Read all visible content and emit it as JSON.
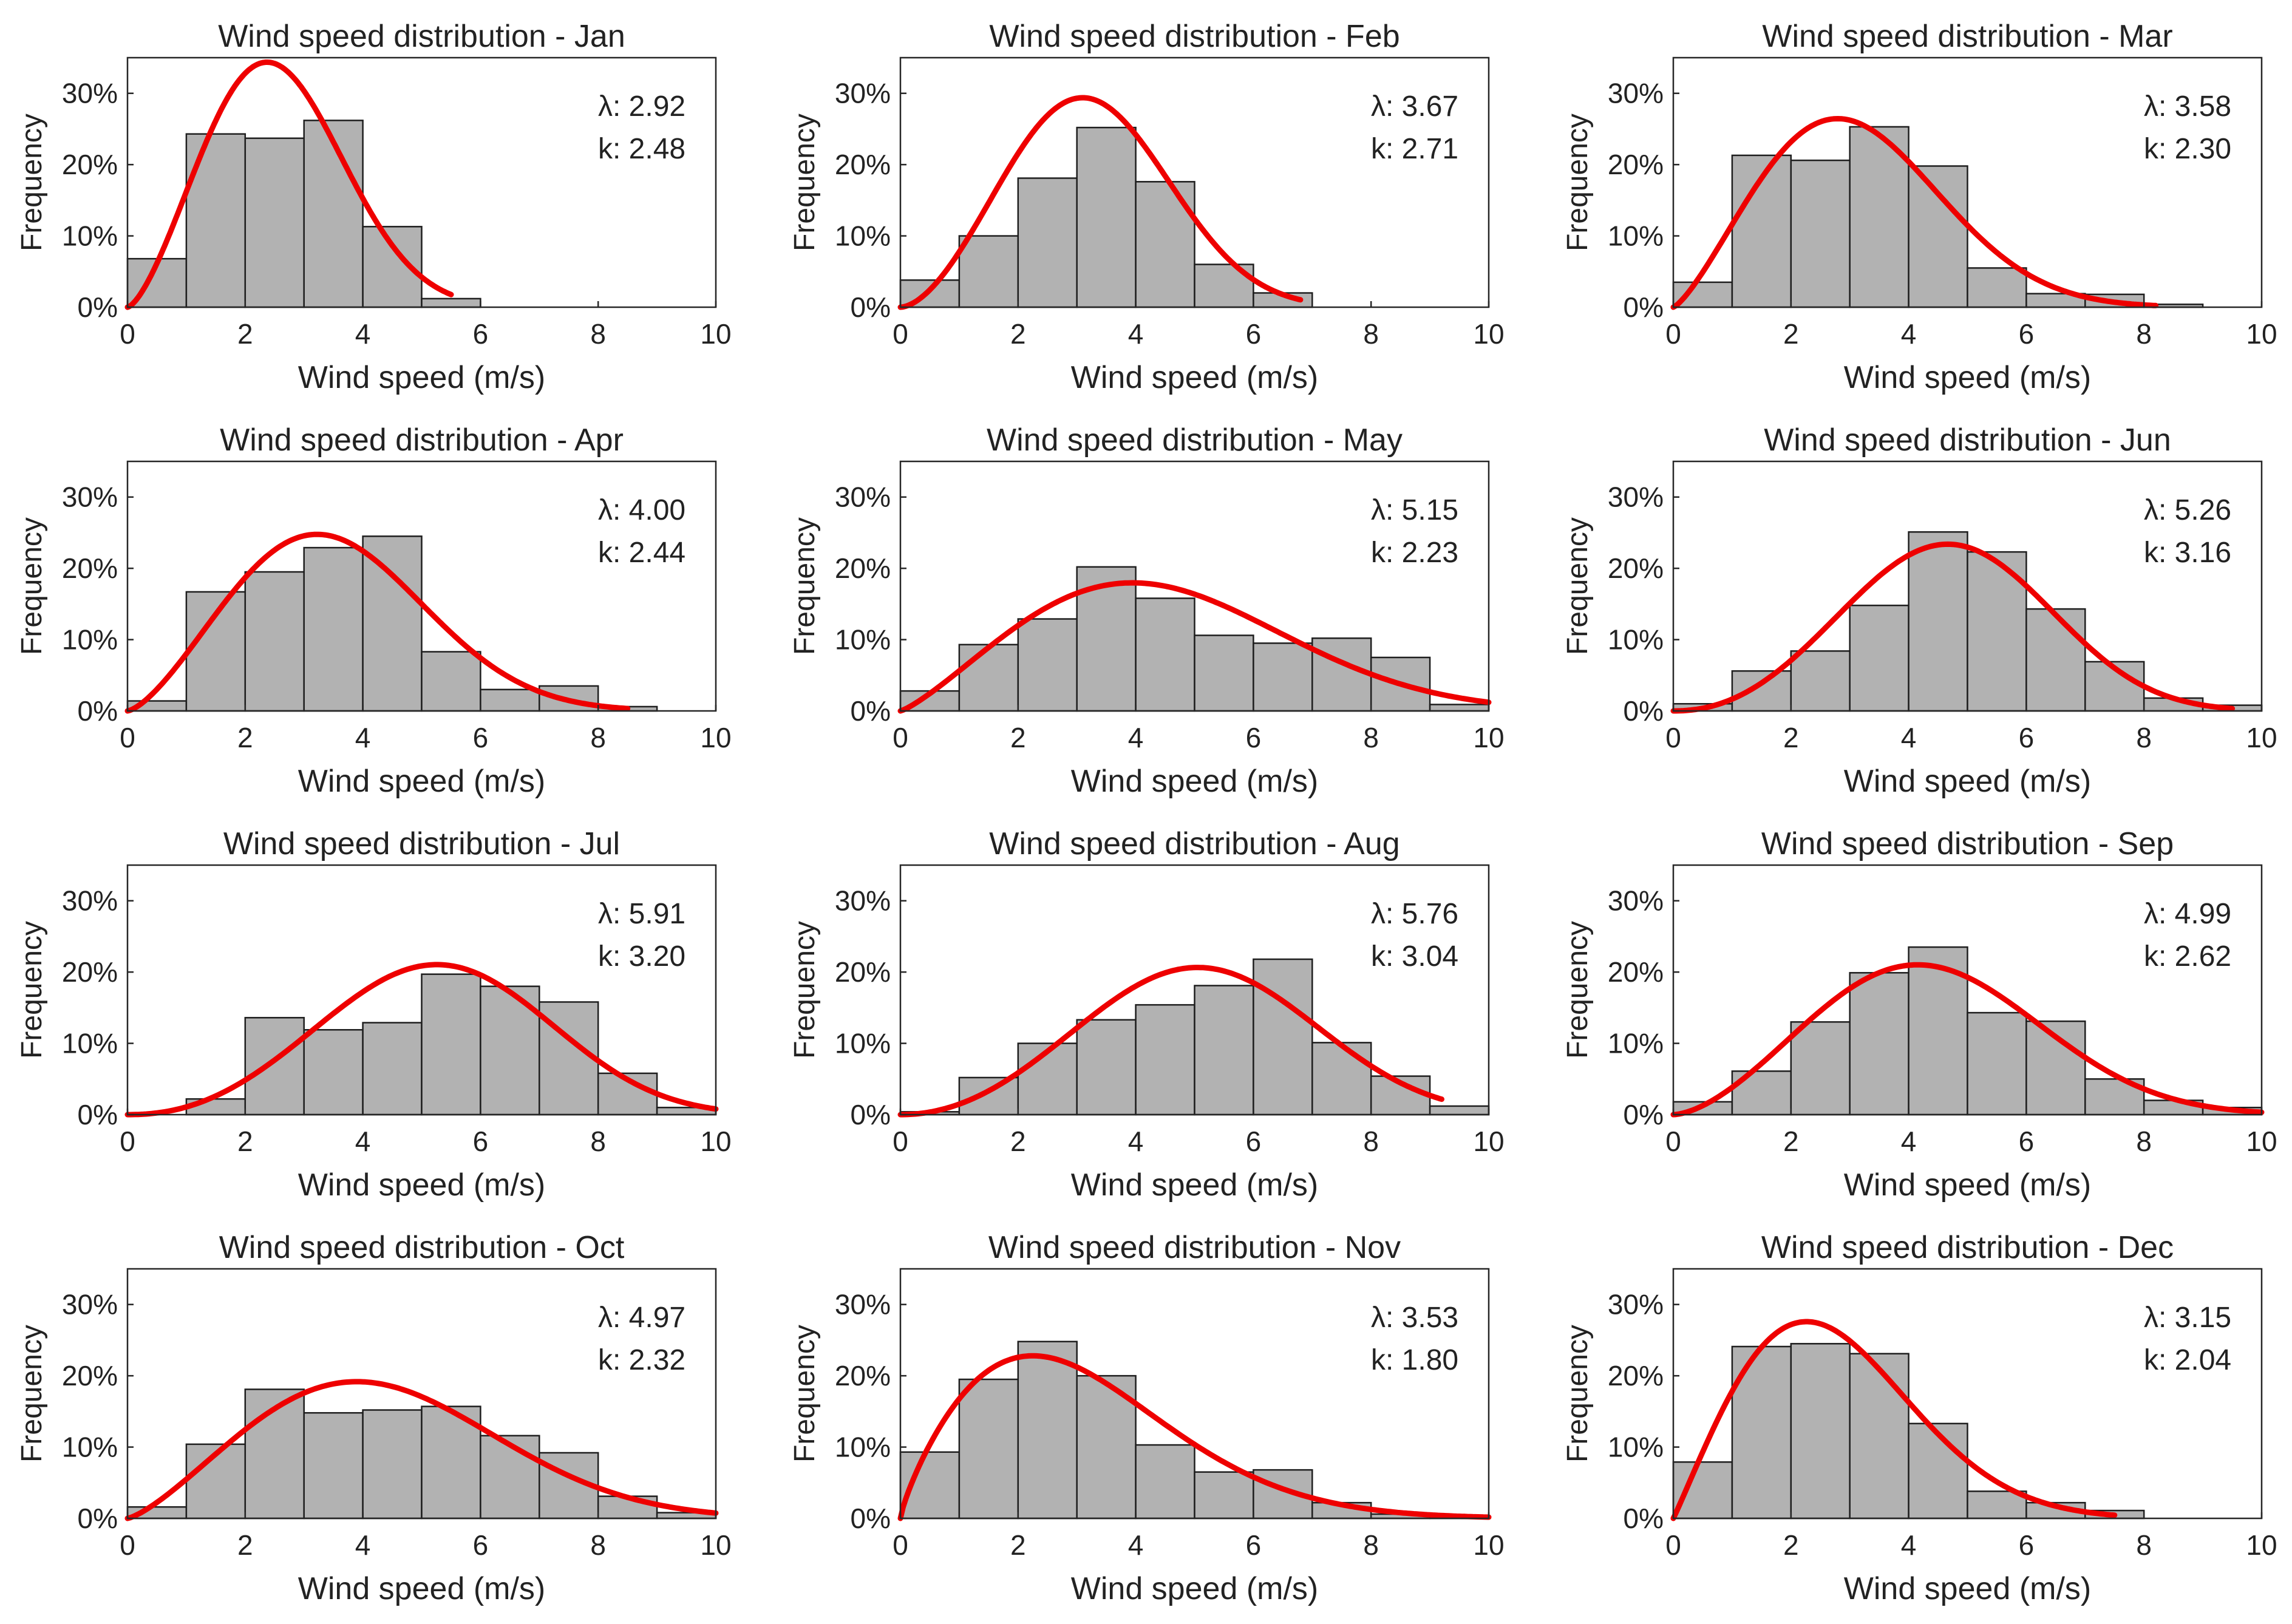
{
  "figure": {
    "colors": {
      "bar_fill": "#b2b2b2",
      "bar_edge": "#1e1e1e",
      "fit_line": "#ee0000",
      "text": "#222222"
    }
  },
  "chart_data": [
    {
      "type": "bar",
      "month": "Jan",
      "title": "Wind speed distribution - Jan",
      "xlabel": "Wind speed (m/s)",
      "ylabel": "Frequency",
      "xlim": [
        0,
        10
      ],
      "ylim": [
        0,
        35
      ],
      "x_ticks": [
        "0",
        "2",
        "4",
        "6",
        "8",
        "10"
      ],
      "y_ticks": [
        "0%",
        "10%",
        "20%",
        "30%"
      ],
      "bin_width": 1,
      "values": [
        6.8,
        24.3,
        23.7,
        26.2,
        11.3,
        1.2,
        0,
        0,
        0,
        0
      ],
      "weibull": {
        "lambda": 2.92,
        "k": 2.48,
        "lambda_label": "λ: 2.92",
        "k_label": "k: 2.48",
        "x_end": 5.5
      }
    },
    {
      "type": "bar",
      "month": "Feb",
      "title": "Wind speed distribution - Feb",
      "xlabel": "Wind speed (m/s)",
      "ylabel": "Frequency",
      "xlim": [
        0,
        10
      ],
      "ylim": [
        0,
        35
      ],
      "x_ticks": [
        "0",
        "2",
        "4",
        "6",
        "8",
        "10"
      ],
      "y_ticks": [
        "0%",
        "10%",
        "20%",
        "30%"
      ],
      "bin_width": 1,
      "values": [
        3.8,
        10.0,
        18.1,
        25.2,
        17.6,
        6.0,
        2.0,
        0,
        0,
        0
      ],
      "weibull": {
        "lambda": 3.67,
        "k": 2.71,
        "lambda_label": "λ: 3.67",
        "k_label": "k: 2.71",
        "x_end": 6.8
      }
    },
    {
      "type": "bar",
      "month": "Mar",
      "title": "Wind speed distribution - Mar",
      "xlabel": "Wind speed (m/s)",
      "ylabel": "Frequency",
      "xlim": [
        0,
        10
      ],
      "ylim": [
        0,
        35
      ],
      "x_ticks": [
        "0",
        "2",
        "4",
        "6",
        "8",
        "10"
      ],
      "y_ticks": [
        "0%",
        "10%",
        "20%",
        "30%"
      ],
      "bin_width": 1,
      "values": [
        3.5,
        21.3,
        20.6,
        25.3,
        19.8,
        5.5,
        1.9,
        1.8,
        0.4,
        0
      ],
      "weibull": {
        "lambda": 3.58,
        "k": 2.3,
        "lambda_label": "λ: 3.58",
        "k_label": "k: 2.30",
        "x_end": 8.2
      }
    },
    {
      "type": "bar",
      "month": "Apr",
      "title": "Wind speed distribution - Apr",
      "xlabel": "Wind speed (m/s)",
      "ylabel": "Frequency",
      "xlim": [
        0,
        10
      ],
      "ylim": [
        0,
        35
      ],
      "x_ticks": [
        "0",
        "2",
        "4",
        "6",
        "8",
        "10"
      ],
      "y_ticks": [
        "0%",
        "10%",
        "20%",
        "30%"
      ],
      "bin_width": 1,
      "values": [
        1.4,
        16.7,
        19.5,
        22.9,
        24.5,
        8.3,
        3.0,
        3.5,
        0.6,
        0
      ],
      "weibull": {
        "lambda": 4.0,
        "k": 2.44,
        "lambda_label": "λ: 4.00",
        "k_label": "k: 2.44",
        "x_end": 8.5
      }
    },
    {
      "type": "bar",
      "month": "May",
      "title": "Wind speed distribution - May",
      "xlabel": "Wind speed (m/s)",
      "ylabel": "Frequency",
      "xlim": [
        0,
        10
      ],
      "ylim": [
        0,
        35
      ],
      "x_ticks": [
        "0",
        "2",
        "4",
        "6",
        "8",
        "10"
      ],
      "y_ticks": [
        "0%",
        "10%",
        "20%",
        "30%"
      ],
      "bin_width": 1,
      "values": [
        2.8,
        9.3,
        12.9,
        20.2,
        15.8,
        10.6,
        9.5,
        10.2,
        7.5,
        0.9
      ],
      "weibull": {
        "lambda": 5.15,
        "k": 2.23,
        "lambda_label": "λ: 5.15",
        "k_label": "k: 2.23",
        "x_end": 10
      }
    },
    {
      "type": "bar",
      "month": "Jun",
      "title": "Wind speed distribution - Jun",
      "xlabel": "Wind speed (m/s)",
      "ylabel": "Frequency",
      "xlim": [
        0,
        10
      ],
      "ylim": [
        0,
        35
      ],
      "x_ticks": [
        "0",
        "2",
        "4",
        "6",
        "8",
        "10"
      ],
      "y_ticks": [
        "0%",
        "10%",
        "20%",
        "30%"
      ],
      "bin_width": 1,
      "values": [
        1.0,
        5.6,
        8.4,
        14.8,
        25.1,
        22.3,
        14.3,
        6.9,
        1.8,
        0.8
      ],
      "weibull": {
        "lambda": 5.26,
        "k": 3.16,
        "lambda_label": "λ: 5.26",
        "k_label": "k: 3.16",
        "x_end": 9.5
      }
    },
    {
      "type": "bar",
      "month": "Jul",
      "title": "Wind speed distribution - Jul",
      "xlabel": "Wind speed (m/s)",
      "ylabel": "Frequency",
      "xlim": [
        0,
        10
      ],
      "ylim": [
        0,
        35
      ],
      "x_ticks": [
        "0",
        "2",
        "4",
        "6",
        "8",
        "10"
      ],
      "y_ticks": [
        "0%",
        "10%",
        "20%",
        "30%"
      ],
      "bin_width": 1,
      "values": [
        0,
        2.2,
        13.6,
        11.9,
        12.9,
        19.7,
        18.0,
        15.8,
        5.8,
        1.0
      ],
      "weibull": {
        "lambda": 5.91,
        "k": 3.2,
        "lambda_label": "λ: 5.91",
        "k_label": "k: 3.20",
        "x_end": 10
      }
    },
    {
      "type": "bar",
      "month": "Aug",
      "title": "Wind speed distribution - Aug",
      "xlabel": "Wind speed (m/s)",
      "ylabel": "Frequency",
      "xlim": [
        0,
        10
      ],
      "ylim": [
        0,
        35
      ],
      "x_ticks": [
        "0",
        "2",
        "4",
        "6",
        "8",
        "10"
      ],
      "y_ticks": [
        "0%",
        "10%",
        "20%",
        "30%"
      ],
      "bin_width": 1,
      "values": [
        0.4,
        5.2,
        10.0,
        13.3,
        15.4,
        18.1,
        21.8,
        10.1,
        5.4,
        1.2
      ],
      "weibull": {
        "lambda": 5.76,
        "k": 3.04,
        "lambda_label": "λ: 5.76",
        "k_label": "k: 3.04",
        "x_end": 9.2
      }
    },
    {
      "type": "bar",
      "month": "Sep",
      "title": "Wind speed distribution - Sep",
      "xlabel": "Wind speed (m/s)",
      "ylabel": "Frequency",
      "xlim": [
        0,
        10
      ],
      "ylim": [
        0,
        35
      ],
      "x_ticks": [
        "0",
        "2",
        "4",
        "6",
        "8",
        "10"
      ],
      "y_ticks": [
        "0%",
        "10%",
        "20%",
        "30%"
      ],
      "bin_width": 1,
      "values": [
        1.8,
        6.1,
        13.0,
        19.9,
        23.5,
        14.3,
        13.1,
        5.0,
        2.0,
        1.0
      ],
      "weibull": {
        "lambda": 4.99,
        "k": 2.62,
        "lambda_label": "λ: 4.99",
        "k_label": "k: 2.62",
        "x_end": 10
      }
    },
    {
      "type": "bar",
      "month": "Oct",
      "title": "Wind speed distribution - Oct",
      "xlabel": "Wind speed (m/s)",
      "ylabel": "Frequency",
      "xlim": [
        0,
        10
      ],
      "ylim": [
        0,
        35
      ],
      "x_ticks": [
        "0",
        "2",
        "4",
        "6",
        "8",
        "10"
      ],
      "y_ticks": [
        "0%",
        "10%",
        "20%",
        "30%"
      ],
      "bin_width": 1,
      "values": [
        1.6,
        10.4,
        18.1,
        14.8,
        15.2,
        15.7,
        11.6,
        9.2,
        3.1,
        0.8
      ],
      "weibull": {
        "lambda": 4.97,
        "k": 2.32,
        "lambda_label": "λ: 4.97",
        "k_label": "k: 2.32",
        "x_end": 10
      }
    },
    {
      "type": "bar",
      "month": "Nov",
      "title": "Wind speed distribution - Nov",
      "xlabel": "Wind speed (m/s)",
      "ylabel": "Frequency",
      "xlim": [
        0,
        10
      ],
      "ylim": [
        0,
        35
      ],
      "x_ticks": [
        "0",
        "2",
        "4",
        "6",
        "8",
        "10"
      ],
      "y_ticks": [
        "0%",
        "10%",
        "20%",
        "30%"
      ],
      "bin_width": 1,
      "values": [
        9.3,
        19.5,
        24.8,
        20.0,
        10.3,
        6.5,
        6.8,
        2.2,
        0.6,
        0.3
      ],
      "weibull": {
        "lambda": 3.53,
        "k": 1.8,
        "lambda_label": "λ: 3.53",
        "k_label": "k: 1.80",
        "x_end": 10
      }
    },
    {
      "type": "bar",
      "month": "Dec",
      "title": "Wind speed distribution - Dec",
      "xlabel": "Wind speed (m/s)",
      "ylabel": "Frequency",
      "xlim": [
        0,
        10
      ],
      "ylim": [
        0,
        35
      ],
      "x_ticks": [
        "0",
        "2",
        "4",
        "6",
        "8",
        "10"
      ],
      "y_ticks": [
        "0%",
        "10%",
        "20%",
        "30%"
      ],
      "bin_width": 1,
      "values": [
        7.9,
        24.1,
        24.5,
        23.1,
        13.3,
        3.8,
        2.2,
        1.1,
        0,
        0
      ],
      "weibull": {
        "lambda": 3.15,
        "k": 2.04,
        "lambda_label": "λ: 3.15",
        "k_label": "k: 2.04",
        "x_end": 7.5
      }
    }
  ]
}
